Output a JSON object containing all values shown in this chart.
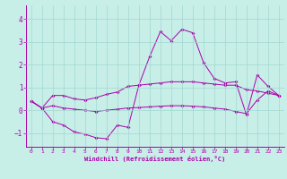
{
  "xlabel": "Windchill (Refroidissement éolien,°C)",
  "background_color": "#c8eee8",
  "grid_color": "#a0d8d0",
  "line_color": "#aa00aa",
  "xlim": [
    -0.5,
    23.5
  ],
  "ylim": [
    -1.6,
    4.6
  ],
  "xticks": [
    0,
    1,
    2,
    3,
    4,
    5,
    6,
    7,
    8,
    9,
    10,
    11,
    12,
    13,
    14,
    15,
    16,
    17,
    18,
    19,
    20,
    21,
    22,
    23
  ],
  "yticks": [
    -1,
    0,
    1,
    2,
    3,
    4
  ],
  "line1": [
    0.4,
    0.1,
    0.65,
    0.65,
    0.5,
    0.45,
    0.55,
    0.7,
    0.8,
    1.05,
    1.1,
    1.15,
    1.2,
    1.25,
    1.25,
    1.25,
    1.2,
    1.15,
    1.1,
    1.1,
    0.9,
    0.85,
    0.75,
    0.65
  ],
  "line2": [
    0.4,
    0.1,
    0.2,
    0.1,
    0.05,
    0.0,
    -0.05,
    0.0,
    0.05,
    0.1,
    0.12,
    0.15,
    0.18,
    0.2,
    0.2,
    0.18,
    0.15,
    0.1,
    0.05,
    -0.05,
    -0.15,
    0.45,
    0.85,
    0.65
  ],
  "line3": [
    0.4,
    0.1,
    -0.5,
    -0.65,
    -0.95,
    -1.05,
    -1.2,
    -1.25,
    -0.65,
    -0.75,
    1.1,
    2.35,
    3.45,
    3.05,
    3.55,
    3.4,
    2.1,
    1.4,
    1.2,
    1.25,
    -0.2,
    1.55,
    1.05,
    0.65
  ]
}
